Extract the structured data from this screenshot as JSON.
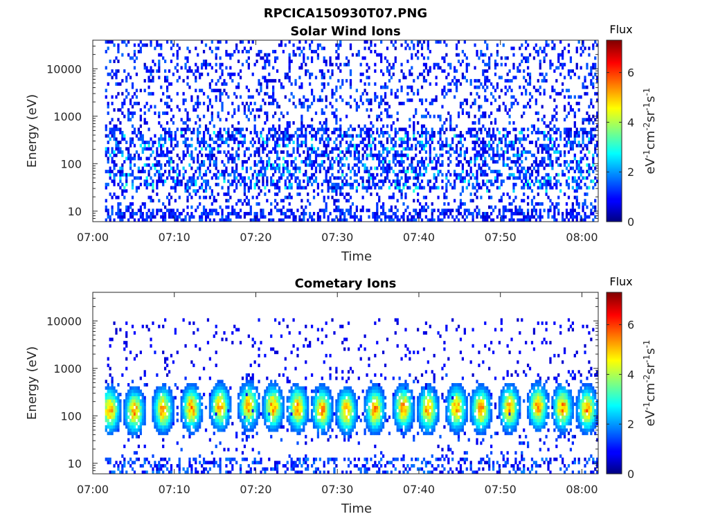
{
  "figure_title": "RPCICA150930T07.PNG",
  "chart_data": [
    {
      "type": "heatmap",
      "title": "Solar Wind Ions",
      "xlabel": "Time",
      "ylabel": "Energy (eV)",
      "x_ticks": [
        "07:00",
        "07:10",
        "07:20",
        "07:30",
        "07:40",
        "07:50",
        "08:00"
      ],
      "x_tick_minutes": [
        0,
        10,
        20,
        30,
        40,
        50,
        60
      ],
      "xlim_minutes": [
        0,
        62
      ],
      "y_scale": "log",
      "y_ticks": [
        "10",
        "100",
        "1000",
        "10000"
      ],
      "y_tick_values": [
        10,
        100,
        1000,
        10000
      ],
      "ylim": [
        6,
        40000
      ],
      "colorbar": {
        "title": "Flux",
        "label": "eV-1cm-2sr-1s-1",
        "ticks": [
          "0",
          "2",
          "4",
          "6"
        ],
        "tick_values": [
          0,
          2,
          4,
          6
        ],
        "range": [
          0,
          7.3
        ],
        "colormap": "jet"
      },
      "data_start_minute": 1.5,
      "data_end_minute": 61.8,
      "pattern": "sparse low-flux counts (0.5-1.5) spread across all energies, denser bands around 30-500 eV with values up to ~3"
    },
    {
      "type": "heatmap",
      "title": "Cometary Ions",
      "xlabel": "Time",
      "ylabel": "Energy (eV)",
      "x_ticks": [
        "07:00",
        "07:10",
        "07:20",
        "07:30",
        "07:40",
        "07:50",
        "08:00"
      ],
      "x_tick_minutes": [
        0,
        10,
        20,
        30,
        40,
        50,
        60
      ],
      "xlim_minutes": [
        0,
        62
      ],
      "y_scale": "log",
      "y_ticks": [
        "10",
        "100",
        "1000",
        "10000"
      ],
      "y_tick_values": [
        10,
        100,
        1000,
        10000
      ],
      "ylim": [
        6,
        40000
      ],
      "colorbar": {
        "title": "Flux",
        "label": "eV-1cm-2sr-1s-1",
        "ticks": [
          "0",
          "2",
          "4",
          "6"
        ],
        "tick_values": [
          0,
          2,
          4,
          6
        ],
        "range": [
          0,
          7.3
        ],
        "colormap": "jet"
      },
      "data_start_minute": 1.5,
      "data_end_minute": 61.8,
      "pattern": "periodic bursts roughly every 3 minutes between 20-500 eV with peak flux ~4-6, sparse counts up to 10000 eV",
      "burst_centers_minutes": [
        2,
        5,
        8.5,
        12,
        15.5,
        19,
        22,
        25,
        28,
        31,
        34.5,
        38,
        41,
        44.5,
        47.5,
        51,
        54.5,
        57.5,
        60.5
      ]
    }
  ]
}
